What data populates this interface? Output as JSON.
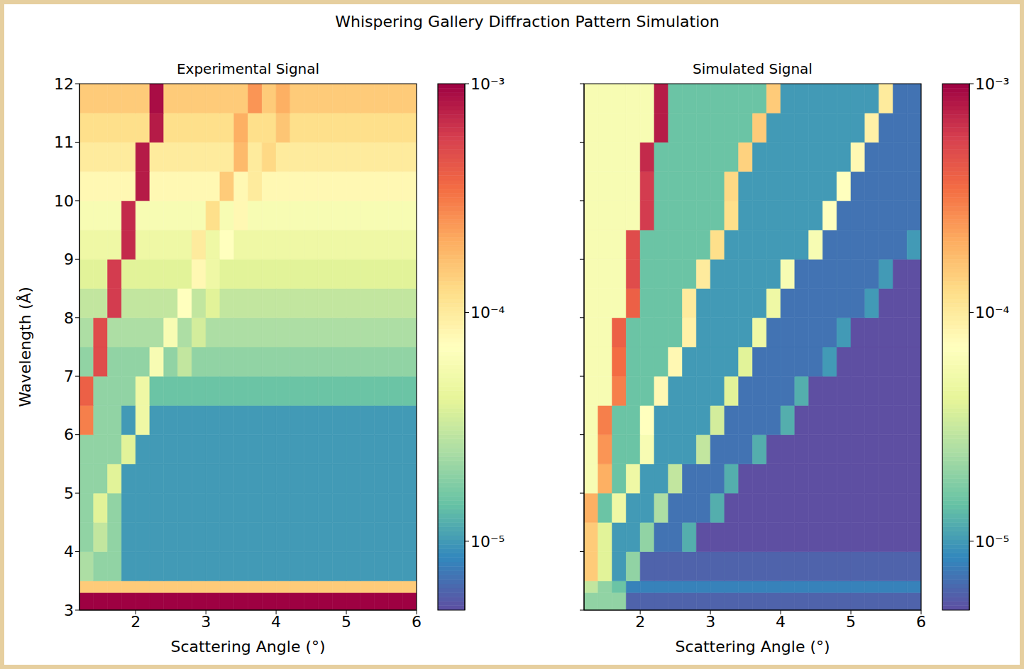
{
  "title": "Whispering Gallery Diffraction Pattern Simulation",
  "chart_data": [
    {
      "type": "heatmap",
      "title": "Experimental Signal",
      "xlabel": "Scattering Angle (°)",
      "ylabel": "Wavelength (Å)",
      "xlim": [
        1.2,
        6
      ],
      "xticks": [
        2,
        3,
        4,
        5,
        6
      ],
      "ylim": [
        3,
        12
      ],
      "yticks": [
        3,
        4,
        5,
        6,
        7,
        8,
        9,
        10,
        11,
        12
      ],
      "x_bins": [
        1.2,
        1.4,
        1.6,
        1.8,
        2.0,
        2.2,
        2.4,
        2.6,
        2.8,
        3.0,
        3.2,
        3.4,
        3.6,
        3.8,
        4.0,
        4.2,
        4.4,
        4.6,
        4.8,
        5.0,
        5.2,
        5.4,
        5.6,
        5.8,
        6.0
      ],
      "y_bins": [
        3,
        3.3,
        3.5,
        4,
        4.5,
        5,
        5.5,
        6,
        6.5,
        7,
        7.5,
        8,
        8.5,
        9,
        9.5,
        10,
        10.5,
        11,
        11.5,
        12
      ],
      "z": [
        [
          0.001,
          0.001,
          0.001,
          0.001,
          0.001,
          0.001,
          0.001,
          0.001,
          0.001,
          0.001,
          0.001,
          0.001,
          0.001,
          0.001,
          0.001,
          0.001,
          0.001,
          0.001,
          0.001,
          0.001,
          0.001,
          0.001,
          0.001,
          0.001
        ],
        [
          0.00015,
          0.00015,
          0.00015,
          0.00015,
          0.00015,
          0.00015,
          0.00015,
          0.00015,
          0.00015,
          0.00015,
          0.00015,
          0.00015,
          0.00015,
          0.00015,
          0.00015,
          0.00015,
          0.00015,
          0.00015,
          0.00015,
          0.00015,
          0.00015,
          0.00015,
          0.00015,
          0.00015
        ],
        [
          2.5e-05,
          2e-05,
          2e-05,
          1e-05,
          1e-05,
          1e-05,
          1e-05,
          1e-05,
          1e-05,
          1e-05,
          1e-05,
          1e-05,
          1e-05,
          1e-05,
          1e-05,
          1e-05,
          1e-05,
          1e-05,
          1e-05,
          1e-05,
          1e-05,
          1e-05,
          1e-05,
          1e-05
        ],
        [
          2e-05,
          3e-05,
          2e-05,
          1e-05,
          1e-05,
          1e-05,
          1e-05,
          1e-05,
          1e-05,
          1e-05,
          1e-05,
          1e-05,
          1e-05,
          1e-05,
          1e-05,
          1e-05,
          1e-05,
          1e-05,
          1e-05,
          1e-05,
          1e-05,
          1e-05,
          1e-05,
          1e-05
        ],
        [
          2e-05,
          4e-05,
          2e-05,
          1e-05,
          1e-05,
          1e-05,
          1e-05,
          1e-05,
          1e-05,
          1e-05,
          1e-05,
          1e-05,
          1e-05,
          1e-05,
          1e-05,
          1e-05,
          1e-05,
          1e-05,
          1e-05,
          1e-05,
          1e-05,
          1e-05,
          1e-05,
          1e-05
        ],
        [
          2e-05,
          2e-05,
          4e-05,
          1e-05,
          1e-05,
          1e-05,
          1e-05,
          1e-05,
          1e-05,
          1e-05,
          1e-05,
          1e-05,
          1e-05,
          1e-05,
          1e-05,
          1e-05,
          1e-05,
          1e-05,
          1e-05,
          1e-05,
          1e-05,
          1e-05,
          1e-05,
          1e-05
        ],
        [
          2e-05,
          2e-05,
          2e-05,
          4e-05,
          1e-05,
          1e-05,
          1e-05,
          1e-05,
          1e-05,
          1e-05,
          1e-05,
          1e-05,
          1e-05,
          1e-05,
          1e-05,
          1e-05,
          1e-05,
          1e-05,
          1e-05,
          1e-05,
          1e-05,
          1e-05,
          1e-05,
          1e-05
        ],
        [
          0.0003,
          2e-05,
          2e-05,
          1e-05,
          5e-05,
          1e-05,
          1e-05,
          1e-05,
          1e-05,
          1e-05,
          1e-05,
          1e-05,
          1e-05,
          1e-05,
          1e-05,
          1e-05,
          1e-05,
          1e-05,
          1e-05,
          1e-05,
          1e-05,
          1e-05,
          1e-05,
          1e-05
        ],
        [
          0.0004,
          2e-05,
          2e-05,
          2e-05,
          5e-05,
          1.5e-05,
          1.5e-05,
          1.5e-05,
          1.5e-05,
          1.5e-05,
          1.5e-05,
          1.5e-05,
          1.5e-05,
          1.5e-05,
          1.5e-05,
          1.5e-05,
          1.5e-05,
          1.5e-05,
          1.5e-05,
          1.5e-05,
          1.5e-05,
          1.5e-05,
          1.5e-05,
          1.5e-05
        ],
        [
          2e-05,
          0.0005,
          2e-05,
          2e-05,
          2e-05,
          6e-05,
          2e-05,
          3e-05,
          2e-05,
          2e-05,
          2e-05,
          2e-05,
          2e-05,
          2e-05,
          2e-05,
          2e-05,
          2e-05,
          2e-05,
          2e-05,
          2e-05,
          2e-05,
          2e-05,
          2e-05,
          2e-05
        ],
        [
          2.5e-05,
          0.0005,
          2.5e-05,
          2.5e-05,
          2.5e-05,
          2.5e-05,
          6e-05,
          2.5e-05,
          3.5e-05,
          2.5e-05,
          2.5e-05,
          2.5e-05,
          2.5e-05,
          2.5e-05,
          2.5e-05,
          2.5e-05,
          2.5e-05,
          2.5e-05,
          2.5e-05,
          2.5e-05,
          2.5e-05,
          2.5e-05,
          2.5e-05,
          2.5e-05
        ],
        [
          3e-05,
          3e-05,
          0.0006,
          3e-05,
          3e-05,
          3e-05,
          3e-05,
          7e-05,
          3e-05,
          4e-05,
          3e-05,
          3e-05,
          3e-05,
          3e-05,
          3e-05,
          3e-05,
          3e-05,
          3e-05,
          3e-05,
          3e-05,
          3e-05,
          3e-05,
          3e-05,
          3e-05
        ],
        [
          4e-05,
          4e-05,
          0.0006,
          4e-05,
          4e-05,
          4e-05,
          4e-05,
          4e-05,
          8e-05,
          5e-05,
          4e-05,
          4e-05,
          4e-05,
          4e-05,
          4e-05,
          4e-05,
          4e-05,
          4e-05,
          4e-05,
          4e-05,
          4e-05,
          4e-05,
          4e-05,
          4e-05
        ],
        [
          5e-05,
          5e-05,
          5e-05,
          0.0007,
          5e-05,
          5e-05,
          5e-05,
          5e-05,
          0.0001,
          5e-05,
          7e-05,
          5e-05,
          5e-05,
          5e-05,
          5e-05,
          5e-05,
          5e-05,
          5e-05,
          5e-05,
          5e-05,
          5e-05,
          5e-05,
          5e-05,
          5e-05
        ],
        [
          6e-05,
          6e-05,
          6e-05,
          0.0007,
          6e-05,
          6e-05,
          6e-05,
          6e-05,
          6e-05,
          0.00012,
          6e-05,
          8e-05,
          6e-05,
          6e-05,
          6e-05,
          6e-05,
          6e-05,
          6e-05,
          6e-05,
          6e-05,
          6e-05,
          6e-05,
          6e-05,
          6e-05
        ],
        [
          8e-05,
          8e-05,
          8e-05,
          8e-05,
          0.0008,
          8e-05,
          8e-05,
          8e-05,
          8e-05,
          8e-05,
          0.00015,
          8e-05,
          0.0001,
          8e-05,
          8e-05,
          8e-05,
          8e-05,
          8e-05,
          8e-05,
          8e-05,
          8e-05,
          8e-05,
          8e-05,
          8e-05
        ],
        [
          0.0001,
          0.0001,
          0.0001,
          0.0001,
          0.0008,
          0.0001,
          0.0001,
          0.0001,
          0.0001,
          0.0001,
          0.0001,
          0.00018,
          0.0001,
          0.00013,
          0.0001,
          0.0001,
          0.0001,
          0.0001,
          0.0001,
          0.0001,
          0.0001,
          0.0001,
          0.0001,
          0.0001
        ],
        [
          0.00012,
          0.00012,
          0.00012,
          0.00012,
          0.00012,
          0.0008,
          0.00012,
          0.00012,
          0.00012,
          0.00012,
          0.00012,
          0.0002,
          0.00012,
          0.00012,
          0.00016,
          0.00012,
          0.00012,
          0.00012,
          0.00012,
          0.00012,
          0.00012,
          0.00012,
          0.00012,
          0.00012
        ],
        [
          0.00015,
          0.00015,
          0.00015,
          0.00015,
          0.00015,
          0.0009,
          0.00015,
          0.00015,
          0.00015,
          0.00015,
          0.00015,
          0.00015,
          0.00025,
          0.00015,
          0.0002,
          0.00015,
          0.00015,
          0.00015,
          0.00015,
          0.00015,
          0.00015,
          0.00015,
          0.00015,
          0.00015
        ]
      ],
      "colorbar": {
        "lim": [
          5e-06,
          0.001
        ],
        "log": true,
        "ticks": [
          {
            "value": 1e-05,
            "label": "10⁻⁵"
          },
          {
            "value": 0.0001,
            "label": "10⁻⁴"
          },
          {
            "value": 0.001,
            "label": "10⁻³"
          }
        ]
      }
    },
    {
      "type": "heatmap",
      "title": "Simulated Signal",
      "xlabel": "Scattering Angle (°)",
      "tick_labels": "x",
      "xlim": [
        1.2,
        6
      ],
      "xticks": [
        2,
        3,
        4,
        5,
        6
      ],
      "ylim": [
        3,
        12
      ],
      "yticks": [
        3,
        4,
        5,
        6,
        7,
        8,
        9,
        10,
        11,
        12
      ],
      "x_bins": [
        1.2,
        1.4,
        1.6,
        1.8,
        2.0,
        2.2,
        2.4,
        2.6,
        2.8,
        3.0,
        3.2,
        3.4,
        3.6,
        3.8,
        4.0,
        4.2,
        4.4,
        4.6,
        4.8,
        5.0,
        5.2,
        5.4,
        5.6,
        5.8,
        6.0
      ],
      "y_bins": [
        3,
        3.3,
        3.5,
        4,
        4.5,
        5,
        5.5,
        6,
        6.5,
        7,
        7.5,
        8,
        8.5,
        9,
        9.5,
        10,
        10.5,
        11,
        11.5,
        12
      ],
      "z": [
        [
          2e-05,
          2e-05,
          2e-05,
          6e-06,
          6e-06,
          6e-06,
          6e-06,
          6e-06,
          6e-06,
          6e-06,
          6e-06,
          6e-06,
          6e-06,
          6e-06,
          6e-06,
          6e-06,
          6e-06,
          6e-06,
          6e-06,
          6e-06,
          6e-06,
          6e-06,
          6e-06,
          6e-06
        ],
        [
          3e-05,
          2e-05,
          1.5e-05,
          8e-06,
          8e-06,
          8e-06,
          8e-06,
          8e-06,
          8e-06,
          8e-06,
          8e-06,
          8e-06,
          8e-06,
          8e-06,
          8e-06,
          8e-06,
          8e-06,
          8e-06,
          8e-06,
          8e-06,
          8e-06,
          8e-06,
          8e-06,
          8e-06
        ],
        [
          0.00015,
          4e-05,
          1e-05,
          2e-05,
          6e-06,
          6e-06,
          6e-06,
          6e-06,
          6e-06,
          6e-06,
          6e-06,
          6e-06,
          6e-06,
          6e-06,
          6e-06,
          6e-06,
          6e-06,
          6e-06,
          6e-06,
          6e-06,
          6e-06,
          6e-06,
          6e-06,
          6e-06
        ],
        [
          0.00015,
          4e-05,
          1e-05,
          1e-05,
          2e-05,
          7e-06,
          7e-06,
          1.2e-05,
          5e-06,
          5e-06,
          5e-06,
          5e-06,
          5e-06,
          5e-06,
          5e-06,
          5e-06,
          5e-06,
          5e-06,
          5e-06,
          5e-06,
          5e-06,
          5e-06,
          5e-06,
          5e-06
        ],
        [
          0.0002,
          1.5e-05,
          5e-05,
          1e-05,
          1e-05,
          2.5e-05,
          7e-06,
          7e-06,
          7e-06,
          1.2e-05,
          5e-06,
          5e-06,
          5e-06,
          5e-06,
          5e-06,
          5e-06,
          5e-06,
          5e-06,
          5e-06,
          5e-06,
          5e-06,
          5e-06,
          5e-06,
          5e-06
        ],
        [
          6e-05,
          0.0002,
          1.5e-05,
          5e-05,
          1e-05,
          1e-05,
          3e-05,
          7e-06,
          7e-06,
          7e-06,
          1.2e-05,
          5e-06,
          5e-06,
          5e-06,
          5e-06,
          5e-06,
          5e-06,
          5e-06,
          5e-06,
          5e-06,
          5e-06,
          5e-06,
          5e-06,
          5e-06
        ],
        [
          6e-05,
          0.00025,
          1.5e-05,
          1.5e-05,
          6e-05,
          1e-05,
          1e-05,
          1e-05,
          3e-05,
          7e-06,
          7e-06,
          7e-06,
          1.2e-05,
          5e-06,
          5e-06,
          5e-06,
          5e-06,
          5e-06,
          5e-06,
          5e-06,
          5e-06,
          5e-06,
          5e-06,
          5e-06
        ],
        [
          6e-05,
          0.0003,
          1.5e-05,
          1.5e-05,
          7e-05,
          1e-05,
          1e-05,
          1e-05,
          1e-05,
          3.5e-05,
          7e-06,
          7e-06,
          7e-06,
          7e-06,
          1.2e-05,
          5e-06,
          5e-06,
          5e-06,
          5e-06,
          5e-06,
          5e-06,
          5e-06,
          5e-06,
          5e-06
        ],
        [
          6e-05,
          6e-05,
          0.0003,
          1.5e-05,
          1.5e-05,
          8e-05,
          1e-05,
          1e-05,
          1e-05,
          1e-05,
          4e-05,
          7e-06,
          7e-06,
          7e-06,
          7e-06,
          1.2e-05,
          5e-06,
          5e-06,
          5e-06,
          5e-06,
          5e-06,
          5e-06,
          5e-06,
          5e-06
        ],
        [
          6e-05,
          6e-05,
          0.00035,
          1.5e-05,
          1.5e-05,
          1.5e-05,
          8e-05,
          1e-05,
          1e-05,
          1e-05,
          1e-05,
          4e-05,
          7e-06,
          7e-06,
          7e-06,
          7e-06,
          7e-06,
          1e-05,
          5e-06,
          5e-06,
          5e-06,
          5e-06,
          5e-06,
          5e-06
        ],
        [
          6e-05,
          6e-05,
          0.0004,
          1.5e-05,
          1.5e-05,
          1.5e-05,
          1.5e-05,
          9e-05,
          1e-05,
          1e-05,
          1e-05,
          1e-05,
          5e-05,
          7e-06,
          7e-06,
          7e-06,
          7e-06,
          7e-06,
          1e-05,
          5e-06,
          5e-06,
          5e-06,
          5e-06,
          5e-06
        ],
        [
          6e-05,
          6e-05,
          6e-05,
          0.0004,
          1.5e-05,
          1.5e-05,
          1.5e-05,
          0.0001,
          1e-05,
          1e-05,
          1e-05,
          1e-05,
          1e-05,
          5e-05,
          7e-06,
          7e-06,
          7e-06,
          7e-06,
          7e-06,
          7e-06,
          1e-05,
          5e-06,
          5e-06,
          5e-06
        ],
        [
          6e-05,
          6e-05,
          6e-05,
          0.0005,
          1.5e-05,
          1.5e-05,
          1.5e-05,
          1.5e-05,
          0.0001,
          1e-05,
          1e-05,
          1e-05,
          1e-05,
          1e-05,
          6e-05,
          7e-06,
          7e-06,
          7e-06,
          7e-06,
          7e-06,
          7e-06,
          1e-05,
          5e-06,
          5e-06
        ],
        [
          6e-05,
          6e-05,
          6e-05,
          0.0005,
          1.5e-05,
          1.5e-05,
          1.5e-05,
          1.5e-05,
          1.5e-05,
          0.00012,
          1e-05,
          1e-05,
          1e-05,
          1e-05,
          1e-05,
          1e-05,
          6e-05,
          7e-06,
          7e-06,
          7e-06,
          7e-06,
          7e-06,
          7e-06,
          1e-05
        ],
        [
          6e-05,
          6e-05,
          6e-05,
          6e-05,
          0.0006,
          1.5e-05,
          1.5e-05,
          1.5e-05,
          1.5e-05,
          1.5e-05,
          0.00012,
          1e-05,
          1e-05,
          1e-05,
          1e-05,
          1e-05,
          1e-05,
          7e-05,
          7e-06,
          7e-06,
          7e-06,
          7e-06,
          7e-06,
          7e-06
        ],
        [
          6e-05,
          6e-05,
          6e-05,
          6e-05,
          0.0006,
          1.5e-05,
          1.5e-05,
          1.5e-05,
          1.5e-05,
          1.5e-05,
          0.00013,
          1e-05,
          1e-05,
          1e-05,
          1e-05,
          1e-05,
          1e-05,
          1e-05,
          7e-05,
          7e-06,
          7e-06,
          7e-06,
          7e-06,
          7e-06
        ],
        [
          6e-05,
          6e-05,
          6e-05,
          6e-05,
          0.0007,
          1.5e-05,
          1.5e-05,
          1.5e-05,
          1.5e-05,
          1.5e-05,
          1.5e-05,
          0.00014,
          1e-05,
          1e-05,
          1e-05,
          1e-05,
          1e-05,
          1e-05,
          1e-05,
          8e-05,
          7e-06,
          7e-06,
          7e-06,
          7e-06
        ],
        [
          6e-05,
          6e-05,
          6e-05,
          6e-05,
          6e-05,
          0.0008,
          1.5e-05,
          1.5e-05,
          1.5e-05,
          1.5e-05,
          1.5e-05,
          1.5e-05,
          0.00015,
          1e-05,
          1e-05,
          1e-05,
          1e-05,
          1e-05,
          1e-05,
          1e-05,
          9e-05,
          7e-06,
          7e-06,
          7e-06
        ],
        [
          6e-05,
          6e-05,
          6e-05,
          6e-05,
          6e-05,
          0.0008,
          1.5e-05,
          1.5e-05,
          1.5e-05,
          1.5e-05,
          1.5e-05,
          1.5e-05,
          1.5e-05,
          0.00015,
          1e-05,
          1e-05,
          1e-05,
          1e-05,
          1e-05,
          1e-05,
          1e-05,
          0.0001,
          7e-06,
          7e-06
        ]
      ],
      "colorbar": {
        "lim": [
          5e-06,
          0.001
        ],
        "log": true,
        "ticks": [
          {
            "value": 1e-05,
            "label": "10⁻⁵"
          },
          {
            "value": 0.0001,
            "label": "10⁻⁴"
          },
          {
            "value": 0.001,
            "label": "10⁻³"
          }
        ]
      }
    }
  ]
}
